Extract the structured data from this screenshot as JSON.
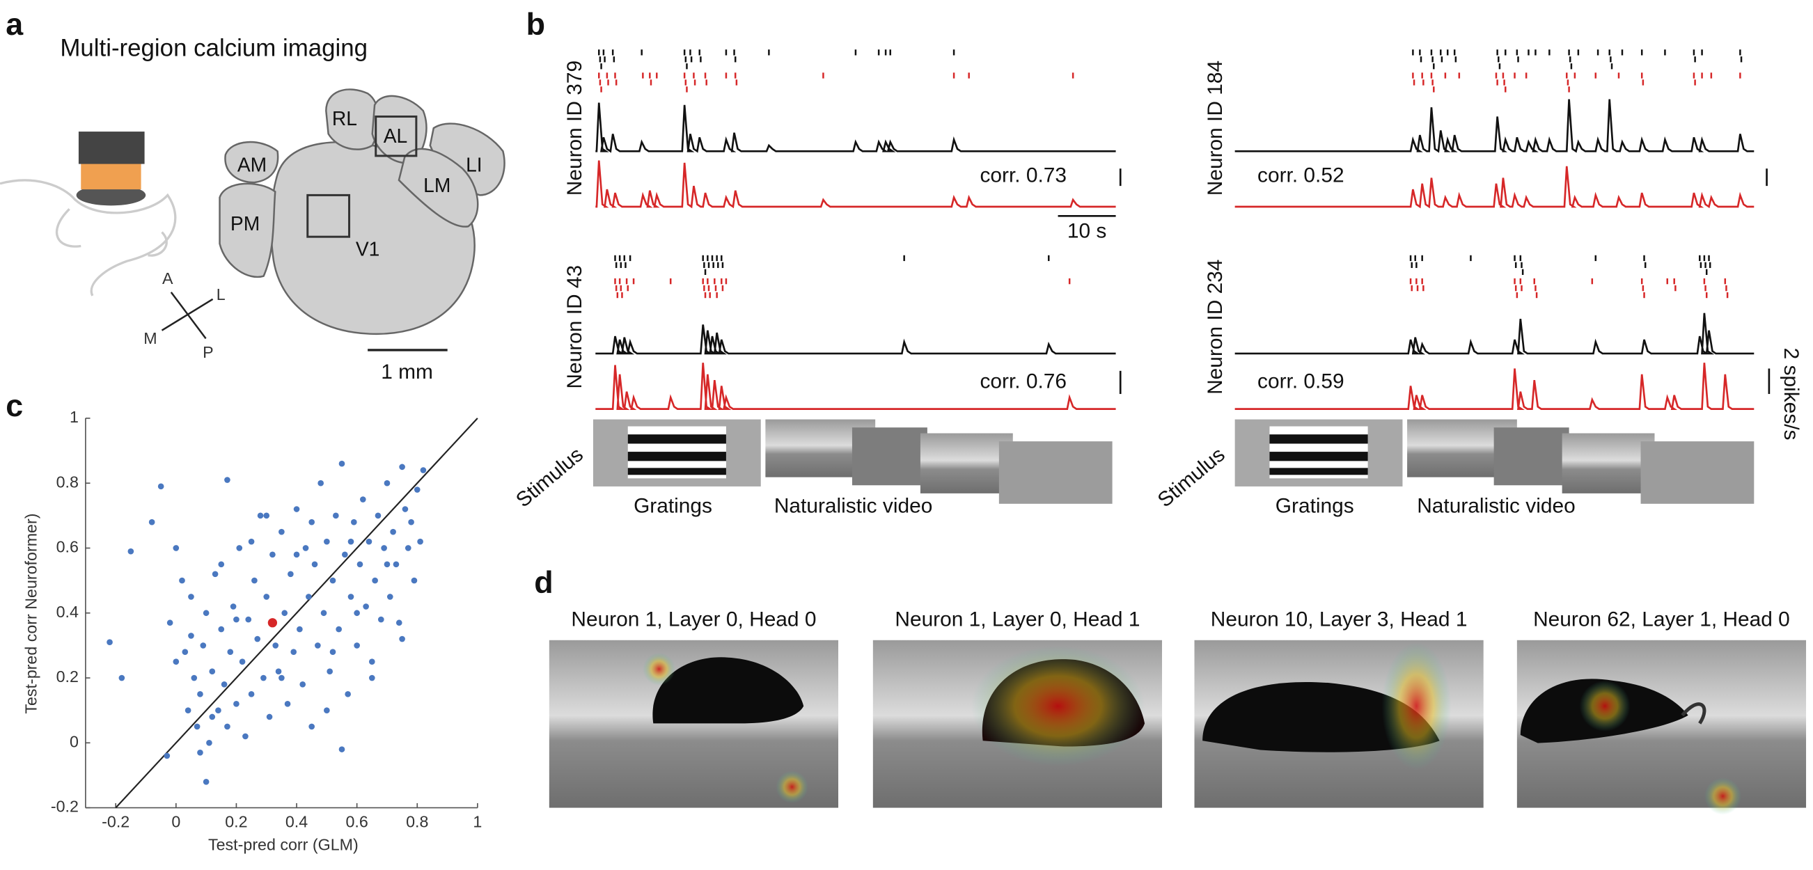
{
  "panels": {
    "a": {
      "label": "a",
      "title": "Multi-region calcium imaging",
      "areas": [
        "RL",
        "AL",
        "LI",
        "LM",
        "AM",
        "PM",
        "V1"
      ],
      "compass": [
        "A",
        "L",
        "M",
        "P"
      ],
      "scale_bar": "1 mm"
    },
    "b": {
      "label": "b",
      "neurons": [
        {
          "name": "Neuron ID 379",
          "corr": "corr. 0.73"
        },
        {
          "name": "Neuron ID 184",
          "corr": "corr. 0.52"
        },
        {
          "name": "Neuron ID 43",
          "corr": "corr. 0.76"
        },
        {
          "name": "Neuron ID 234",
          "corr": "corr. 0.59"
        }
      ],
      "time_scale": "10 s",
      "rate_scale": "2 spikes/s",
      "stimulus_label": "Stimulus",
      "stimuli": [
        "Gratings",
        "Naturalistic video"
      ]
    },
    "c": {
      "label": "c"
    },
    "d": {
      "label": "d",
      "titles": [
        "Neuron 1, Layer 0, Head 0",
        "Neuron 1, Layer 0, Head 1",
        "Neuron 10, Layer 3, Head 1",
        "Neuron 62, Layer 1, Head 0"
      ]
    }
  },
  "chart_data": {
    "type": "scatter",
    "xlabel": "Test-pred corr (GLM)",
    "ylabel": "Test-pred corr Neuroformer)",
    "xlim": [
      -0.3,
      1
    ],
    "ylim": [
      -0.2,
      1
    ],
    "xticks": [
      -0.2,
      0,
      0.2,
      0.4,
      0.6,
      0.8,
      1
    ],
    "yticks": [
      -0.2,
      0,
      0.2,
      0.4,
      0.6,
      0.8,
      1
    ],
    "series": [
      {
        "color": "#4a78c0",
        "x": [
          -0.22,
          -0.18,
          -0.15,
          -0.08,
          -0.05,
          -0.02,
          0.0,
          0.02,
          0.03,
          0.05,
          0.04,
          0.06,
          0.07,
          0.08,
          0.09,
          0.1,
          0.1,
          0.11,
          0.12,
          0.13,
          0.14,
          0.15,
          0.16,
          0.17,
          0.17,
          0.18,
          0.19,
          0.2,
          0.21,
          0.22,
          0.23,
          0.24,
          0.25,
          0.26,
          0.27,
          0.28,
          0.29,
          0.3,
          0.31,
          0.32,
          0.33,
          0.34,
          0.35,
          0.36,
          0.37,
          0.38,
          0.39,
          0.4,
          0.41,
          0.42,
          0.43,
          0.44,
          0.45,
          0.46,
          0.47,
          0.48,
          0.49,
          0.5,
          0.51,
          0.52,
          0.53,
          0.54,
          0.55,
          0.55,
          0.56,
          0.57,
          0.58,
          0.59,
          0.6,
          0.61,
          0.62,
          0.63,
          0.64,
          0.65,
          0.66,
          0.67,
          0.68,
          0.69,
          0.7,
          0.71,
          0.72,
          0.73,
          0.74,
          0.75,
          0.75,
          0.76,
          0.77,
          0.78,
          0.79,
          0.8,
          0.81,
          0.82,
          0.0,
          0.05,
          0.12,
          0.2,
          0.25,
          0.35,
          0.45,
          0.5,
          0.6,
          0.65,
          0.7,
          0.15,
          -0.03,
          0.08,
          0.3,
          0.4,
          0.52,
          0.58
        ],
        "y": [
          0.31,
          0.2,
          0.59,
          0.68,
          0.79,
          0.37,
          0.6,
          0.5,
          0.28,
          0.45,
          0.1,
          0.2,
          0.05,
          0.15,
          0.3,
          -0.12,
          0.4,
          0.0,
          0.22,
          0.52,
          0.1,
          0.35,
          0.18,
          0.81,
          0.05,
          0.28,
          0.42,
          0.12,
          0.6,
          0.25,
          0.02,
          0.38,
          0.15,
          0.5,
          0.32,
          0.7,
          0.2,
          0.45,
          0.08,
          0.58,
          0.3,
          0.22,
          0.65,
          0.4,
          0.12,
          0.52,
          0.28,
          0.72,
          0.35,
          0.18,
          0.6,
          0.45,
          0.05,
          0.55,
          0.3,
          0.8,
          0.4,
          0.62,
          0.22,
          0.5,
          0.7,
          0.35,
          -0.02,
          0.86,
          0.58,
          0.15,
          0.45,
          0.68,
          0.3,
          0.55,
          0.75,
          0.42,
          0.62,
          0.25,
          0.5,
          0.7,
          0.38,
          0.6,
          0.8,
          0.45,
          0.65,
          0.55,
          0.37,
          0.32,
          0.85,
          0.72,
          0.6,
          0.68,
          0.5,
          0.78,
          0.62,
          0.84,
          0.25,
          0.33,
          0.08,
          0.38,
          0.62,
          0.2,
          0.68,
          0.1,
          0.4,
          0.2,
          0.55,
          0.55,
          -0.04,
          -0.03,
          0.7,
          0.58,
          0.28,
          0.62
        ]
      },
      {
        "color": "#d62728",
        "x": [
          0.32
        ],
        "y": [
          0.37
        ]
      }
    ]
  }
}
